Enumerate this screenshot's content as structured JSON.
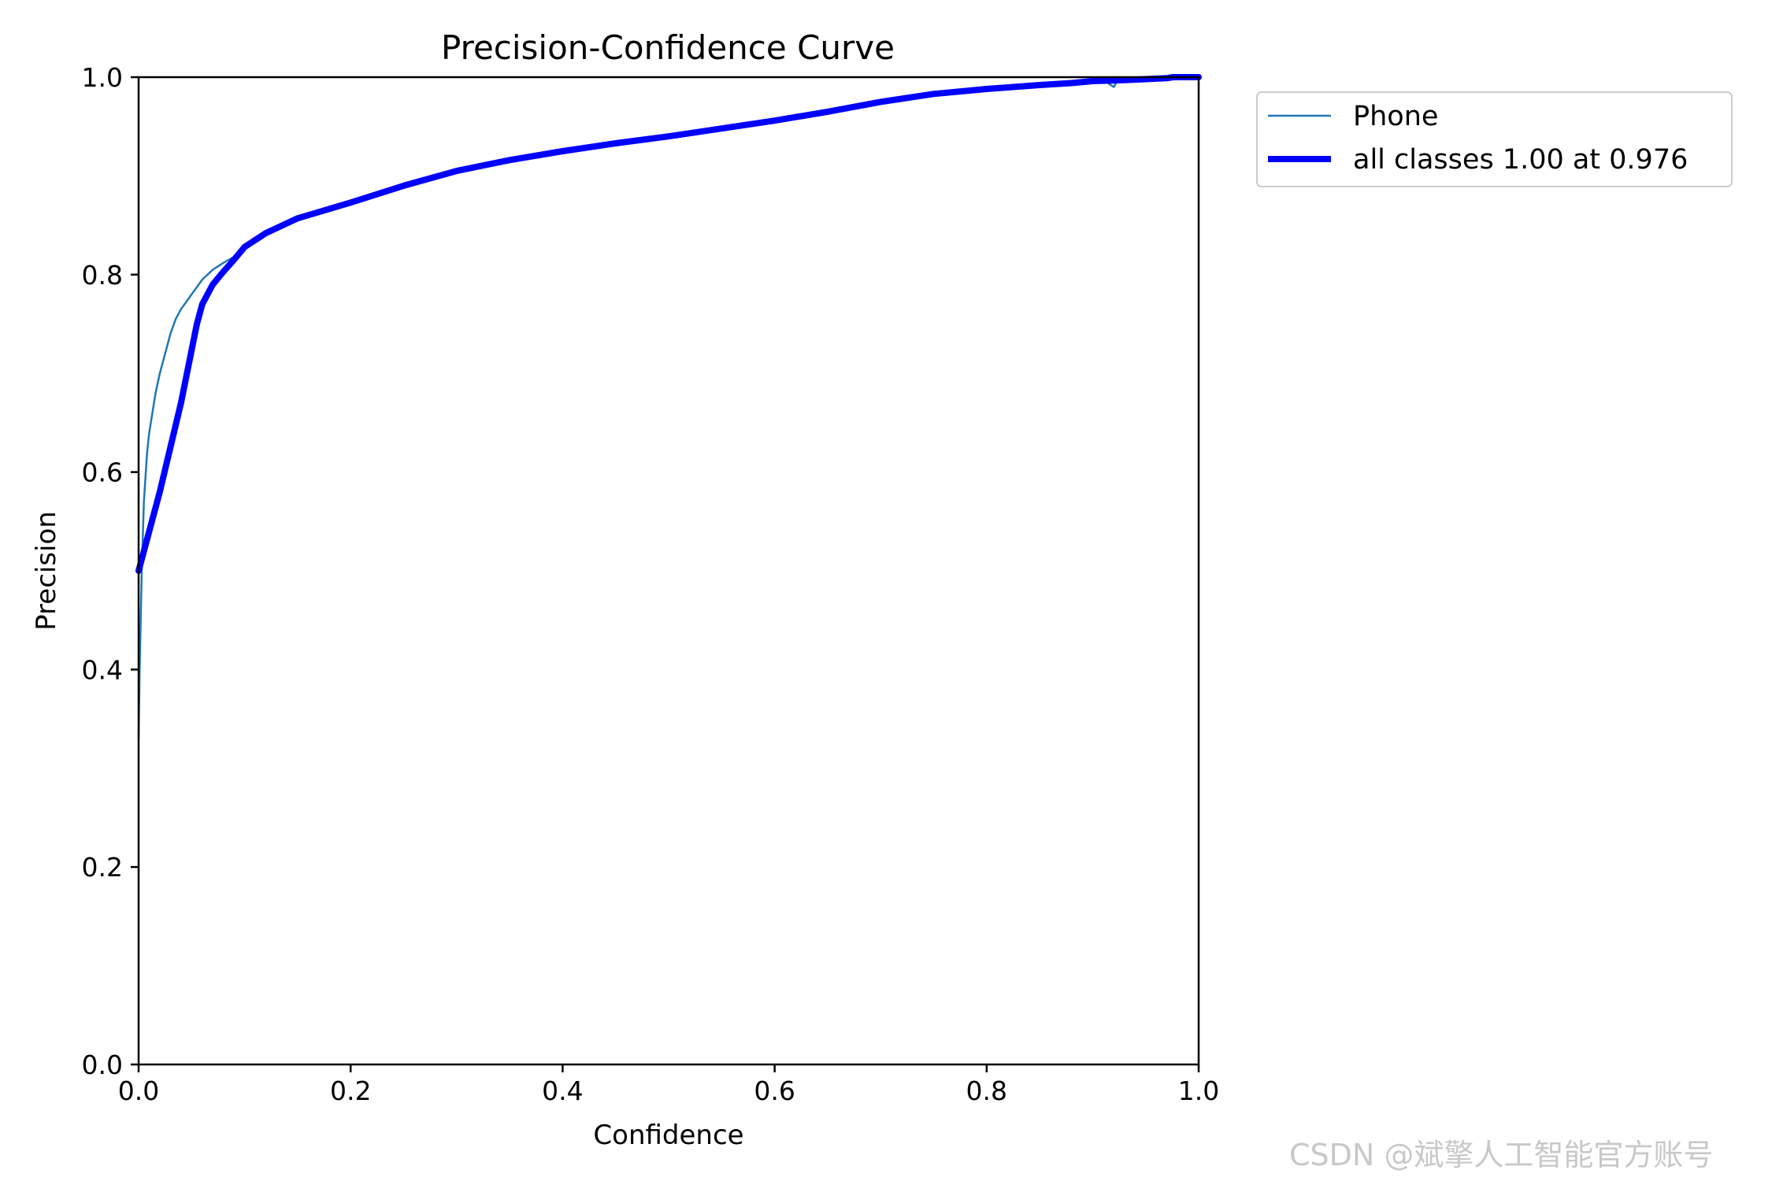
{
  "chart_data": {
    "type": "line",
    "title": "Precision-Confidence Curve",
    "xlabel": "Confidence",
    "ylabel": "Precision",
    "xlim": [
      0.0,
      1.0
    ],
    "ylim": [
      0.0,
      1.0
    ],
    "xticks": [
      "0.0",
      "0.2",
      "0.4",
      "0.6",
      "0.8",
      "1.0"
    ],
    "yticks": [
      "0.0",
      "0.2",
      "0.4",
      "0.6",
      "0.8",
      "1.0"
    ],
    "grid": false,
    "legend_position": "outside-top-right",
    "series": [
      {
        "name": "Phone",
        "color": "#1f77b4",
        "line_style": "thin",
        "x": [
          0.0,
          0.001,
          0.003,
          0.005,
          0.008,
          0.01,
          0.013,
          0.016,
          0.02,
          0.025,
          0.03,
          0.035,
          0.04,
          0.05,
          0.06,
          0.07,
          0.08,
          0.09,
          0.1,
          0.12,
          0.15,
          0.2,
          0.25,
          0.3,
          0.35,
          0.4,
          0.45,
          0.5,
          0.55,
          0.6,
          0.65,
          0.7,
          0.75,
          0.8,
          0.85,
          0.88,
          0.9,
          0.91,
          0.92,
          0.925,
          0.93,
          0.95,
          0.97,
          1.0
        ],
        "y": [
          0.33,
          0.4,
          0.5,
          0.57,
          0.62,
          0.64,
          0.66,
          0.68,
          0.7,
          0.72,
          0.74,
          0.755,
          0.765,
          0.78,
          0.795,
          0.805,
          0.812,
          0.818,
          0.828,
          0.84,
          0.855,
          0.873,
          0.891,
          0.906,
          0.916,
          0.925,
          0.933,
          0.94,
          0.948,
          0.956,
          0.965,
          0.975,
          0.983,
          0.988,
          0.992,
          0.994,
          0.996,
          0.997,
          0.99,
          1.0,
          0.998,
          0.999,
          1.0,
          1.0
        ]
      },
      {
        "name": "all classes 1.00 at 0.976",
        "color": "#0000ff",
        "line_style": "thick",
        "x": [
          0.0,
          0.02,
          0.04,
          0.055,
          0.06,
          0.07,
          0.08,
          0.09,
          0.1,
          0.12,
          0.15,
          0.2,
          0.25,
          0.3,
          0.35,
          0.4,
          0.45,
          0.5,
          0.55,
          0.6,
          0.65,
          0.7,
          0.75,
          0.8,
          0.85,
          0.88,
          0.9,
          0.93,
          0.95,
          0.97,
          0.976,
          1.0
        ],
        "y": [
          0.5,
          0.58,
          0.67,
          0.75,
          0.77,
          0.79,
          0.803,
          0.815,
          0.828,
          0.842,
          0.857,
          0.873,
          0.89,
          0.905,
          0.916,
          0.925,
          0.933,
          0.94,
          0.948,
          0.956,
          0.965,
          0.975,
          0.983,
          0.988,
          0.992,
          0.994,
          0.996,
          0.997,
          0.998,
          0.999,
          1.0,
          1.0
        ]
      }
    ]
  },
  "watermark": "CSDN @斌擎人工智能官方账号"
}
